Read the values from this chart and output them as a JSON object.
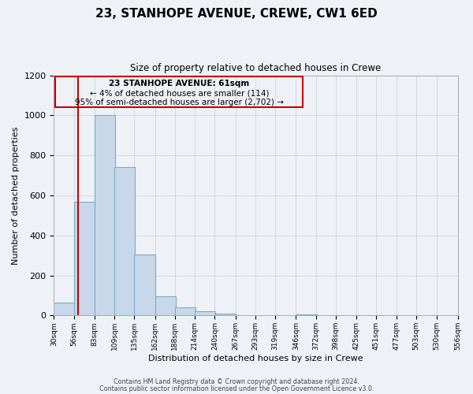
{
  "title": "23, STANHOPE AVENUE, CREWE, CW1 6ED",
  "subtitle": "Size of property relative to detached houses in Crewe",
  "xlabel": "Distribution of detached houses by size in Crewe",
  "ylabel": "Number of detached properties",
  "bar_left_edges": [
    30,
    56,
    83,
    109,
    135,
    162,
    188,
    214,
    240,
    267,
    293,
    319,
    346,
    372,
    398,
    425,
    451,
    477,
    503,
    530
  ],
  "bar_heights": [
    65,
    570,
    1000,
    740,
    305,
    95,
    40,
    20,
    10,
    0,
    0,
    0,
    5,
    0,
    0,
    0,
    0,
    0,
    0,
    0
  ],
  "bin_width": 27,
  "bar_color": "#c8d8ea",
  "bar_edge_color": "#7aaac8",
  "property_line_x": 61,
  "property_line_color": "#cc0000",
  "annotation_box_color": "#cc0000",
  "annotation_text_line1": "23 STANHOPE AVENUE: 61sqm",
  "annotation_text_line2": "← 4% of detached houses are smaller (114)",
  "annotation_text_line3": "95% of semi-detached houses are larger (2,702) →",
  "ylim": [
    0,
    1200
  ],
  "yticks": [
    0,
    200,
    400,
    600,
    800,
    1000,
    1200
  ],
  "xtick_labels": [
    "30sqm",
    "56sqm",
    "83sqm",
    "109sqm",
    "135sqm",
    "162sqm",
    "188sqm",
    "214sqm",
    "240sqm",
    "267sqm",
    "293sqm",
    "319sqm",
    "346sqm",
    "372sqm",
    "398sqm",
    "425sqm",
    "451sqm",
    "477sqm",
    "503sqm",
    "530sqm",
    "556sqm"
  ],
  "footer_line1": "Contains HM Land Registry data © Crown copyright and database right 2024.",
  "footer_line2": "Contains public sector information licensed under the Open Government Licence v3.0.",
  "background_color": "#eef2f7",
  "plot_background_color": "#eef2f7",
  "grid_color": "#c5cdd8"
}
